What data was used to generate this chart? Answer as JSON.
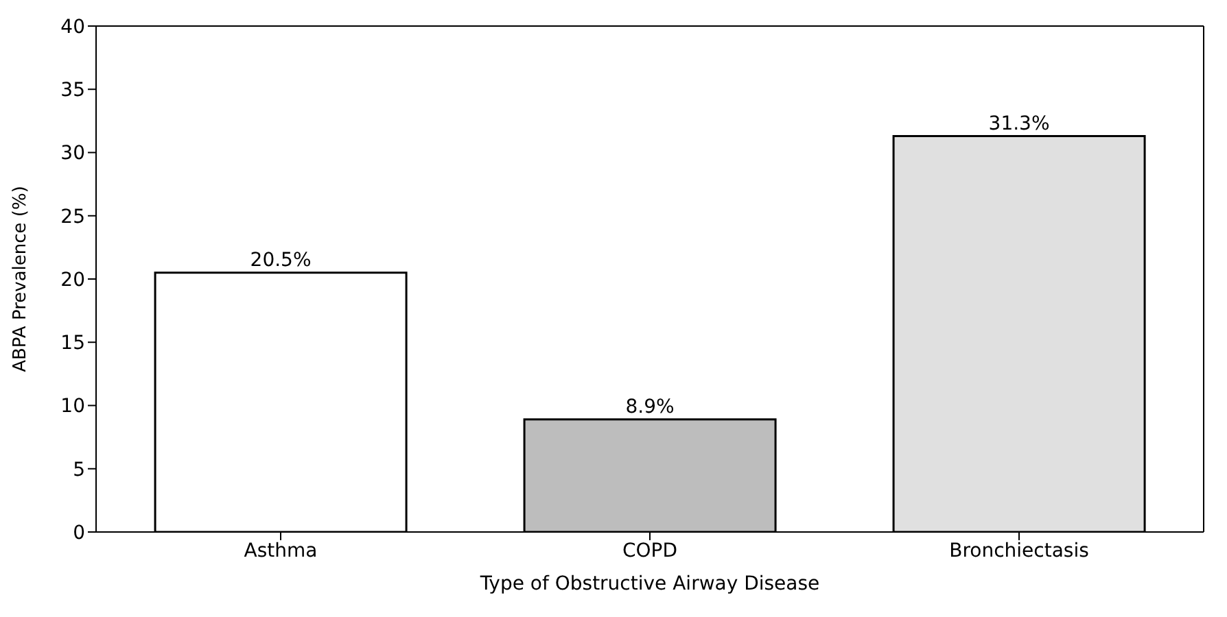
{
  "chart_data": {
    "type": "bar",
    "xlabel": "Type of Obstructive Airway Disease",
    "ylabel": "ABPA Prevalence (%)",
    "categories": [
      "Asthma",
      "COPD",
      "Bronchiectasis"
    ],
    "values": [
      20.5,
      8.9,
      31.3
    ],
    "colors": [
      "#ffffff",
      "#bdbdbd",
      "#e0e0e0"
    ],
    "value_labels": [
      "20.5%",
      "8.9%",
      "31.3%"
    ],
    "ylim": [
      0,
      40
    ],
    "yticks": [
      0,
      5,
      10,
      15,
      20,
      25,
      30,
      35,
      40
    ],
    "grid": false,
    "legend": false
  }
}
